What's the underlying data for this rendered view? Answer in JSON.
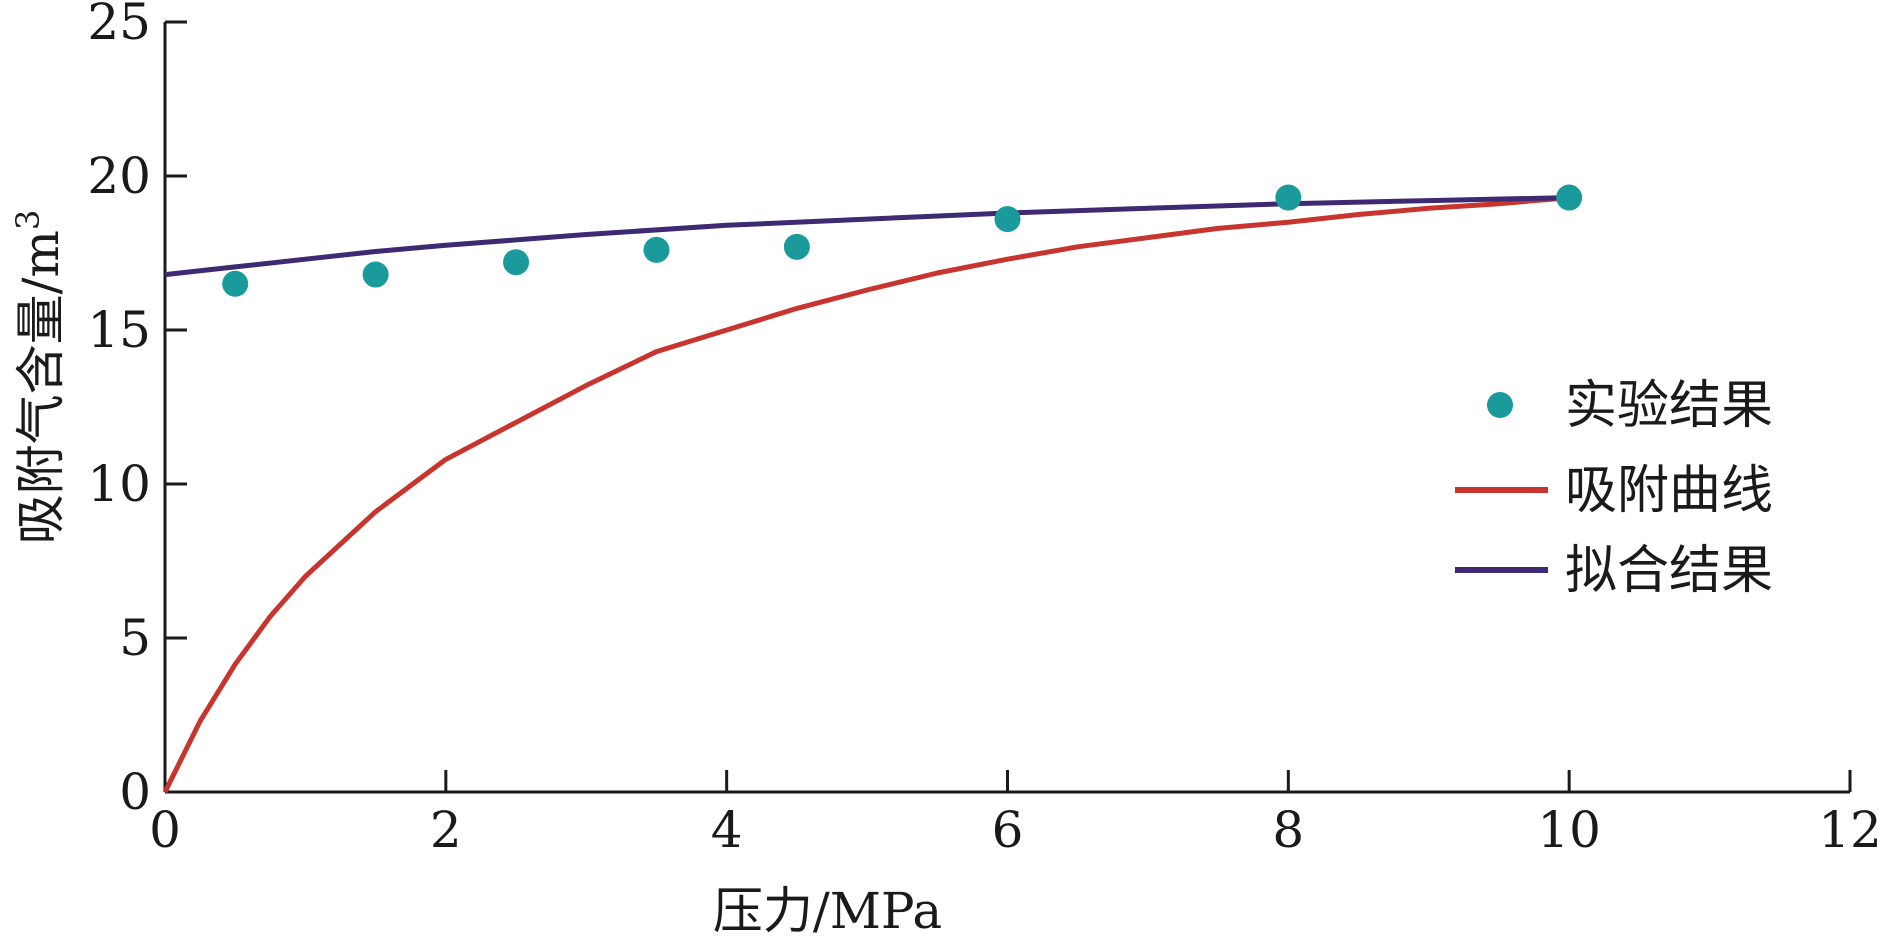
{
  "chart_data": {
    "type": "line",
    "title": "",
    "xlabel": "压力/MPa",
    "ylabel": "吸附气含量/m",
    "ylabel_superscript": "3",
    "xlim": [
      0,
      12
    ],
    "ylim": [
      0,
      25
    ],
    "xticks": [
      "0",
      "2",
      "4",
      "6",
      "8",
      "10",
      "12"
    ],
    "yticks": [
      "0",
      "5",
      "10",
      "15",
      "20",
      "25"
    ],
    "grid": false,
    "legend_position": "right",
    "series": [
      {
        "name": "实验结果",
        "kind": "scatter",
        "color": "#1a9a9a",
        "x": [
          0.5,
          1.5,
          2.5,
          3.5,
          4.5,
          6,
          8,
          10
        ],
        "y": [
          16.5,
          16.8,
          17.2,
          17.6,
          17.7,
          18.6,
          19.3,
          19.3
        ]
      },
      {
        "name": "吸附曲线",
        "kind": "line",
        "color": "#c8352f",
        "x": [
          0,
          0.25,
          0.5,
          0.75,
          1,
          1.5,
          2,
          2.5,
          3,
          3.5,
          4,
          4.5,
          5,
          5.5,
          6,
          6.5,
          7,
          7.5,
          8,
          8.5,
          9,
          9.5,
          10
        ],
        "y": [
          0,
          2.3,
          4.15,
          5.7,
          7.0,
          9.1,
          10.8,
          12.0,
          13.2,
          14.3,
          15.0,
          15.7,
          16.3,
          16.85,
          17.3,
          17.7,
          18.0,
          18.3,
          18.5,
          18.75,
          18.95,
          19.1,
          19.3
        ]
      },
      {
        "name": "拟合结果",
        "kind": "line",
        "color": "#3d2a72",
        "x": [
          0,
          0.5,
          1,
          1.5,
          2,
          3,
          4,
          5,
          6,
          7,
          8,
          9,
          10
        ],
        "y": [
          16.8,
          17.05,
          17.3,
          17.55,
          17.75,
          18.1,
          18.4,
          18.6,
          18.8,
          18.95,
          19.1,
          19.2,
          19.3
        ]
      }
    ]
  }
}
